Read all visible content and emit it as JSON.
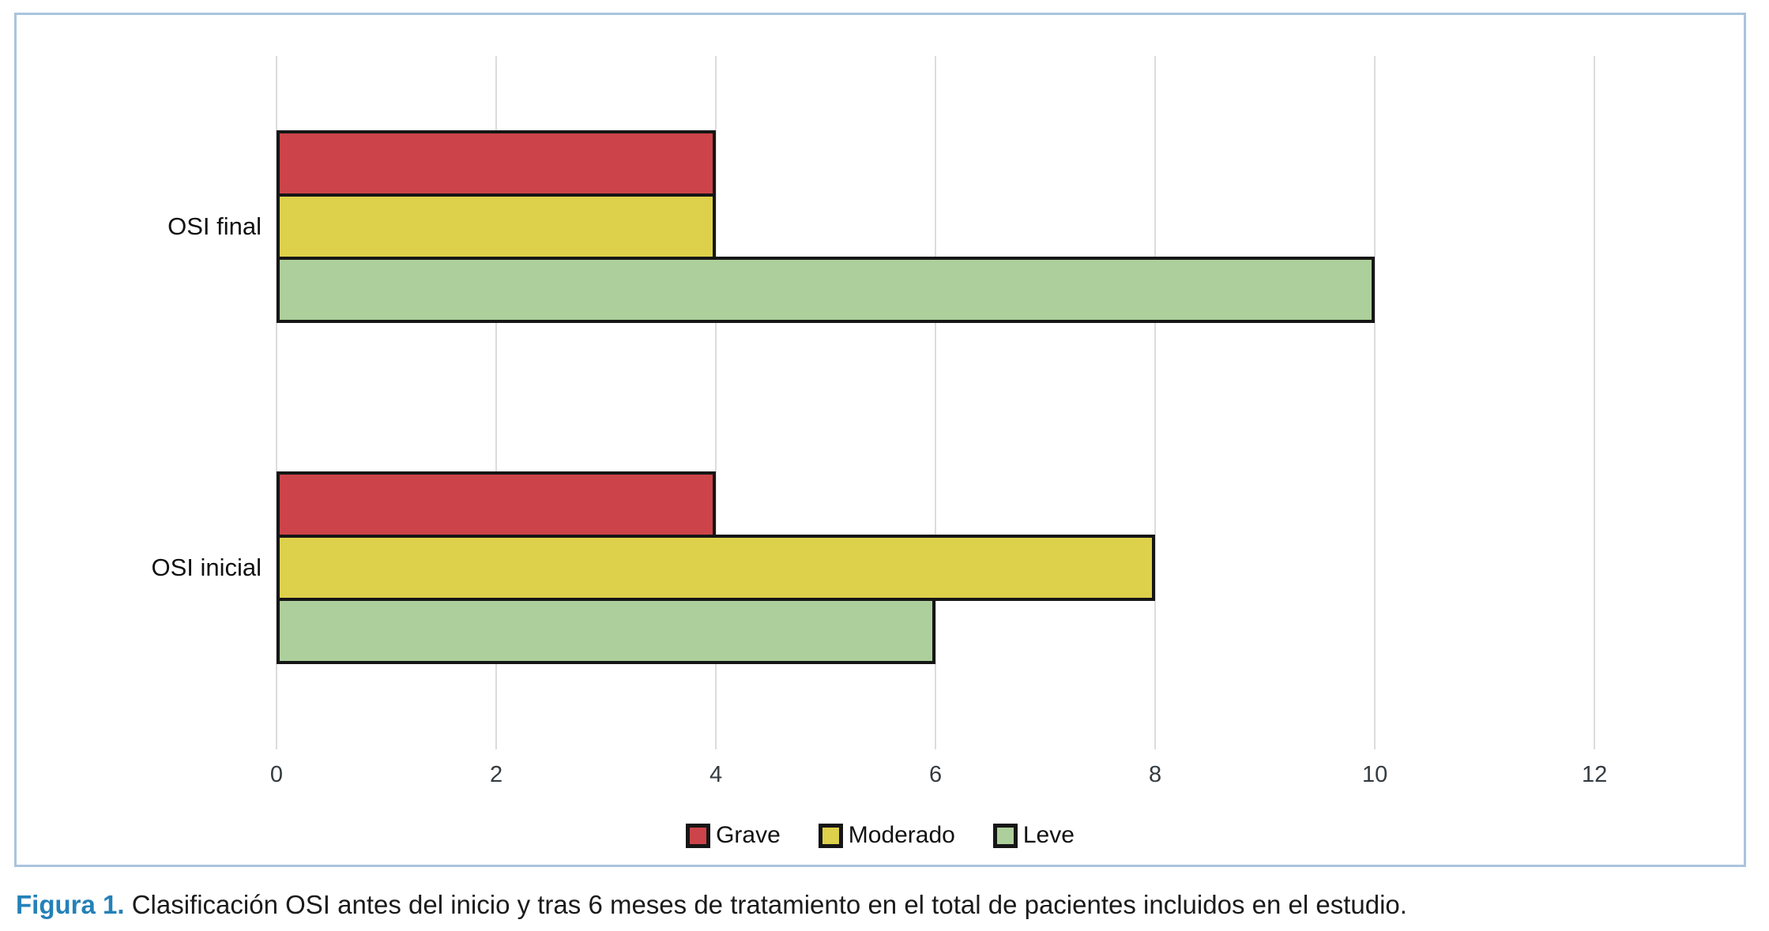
{
  "panel": {
    "border_color": "#aac4de"
  },
  "chart_data": {
    "type": "bar",
    "orientation": "horizontal",
    "title": "",
    "xlabel": "",
    "ylabel": "",
    "categories": [
      "OSI final",
      "OSI inicial"
    ],
    "series": [
      {
        "name": "Grave",
        "color": "#cc4449",
        "values": [
          4,
          4
        ]
      },
      {
        "name": "Moderado",
        "color": "#ddd04b",
        "values": [
          4,
          8
        ]
      },
      {
        "name": "Leve",
        "color": "#accf9b",
        "values": [
          10,
          6
        ]
      }
    ],
    "x_ticks": [
      0,
      2,
      4,
      6,
      8,
      10,
      12
    ],
    "xlim": [
      0,
      12
    ],
    "x_units_across_plot": 13.38,
    "grid": true,
    "legend_position": "bottom",
    "bar_border_color": "#161616",
    "gridline_color": "#dcdcdc",
    "tick_label_color": "#343b40"
  },
  "caption": {
    "label": "Figura 1.",
    "text": "Clasificación OSI antes del inicio y tras 6 meses de tratamiento en el total de pacientes incluidos en el estudio."
  }
}
